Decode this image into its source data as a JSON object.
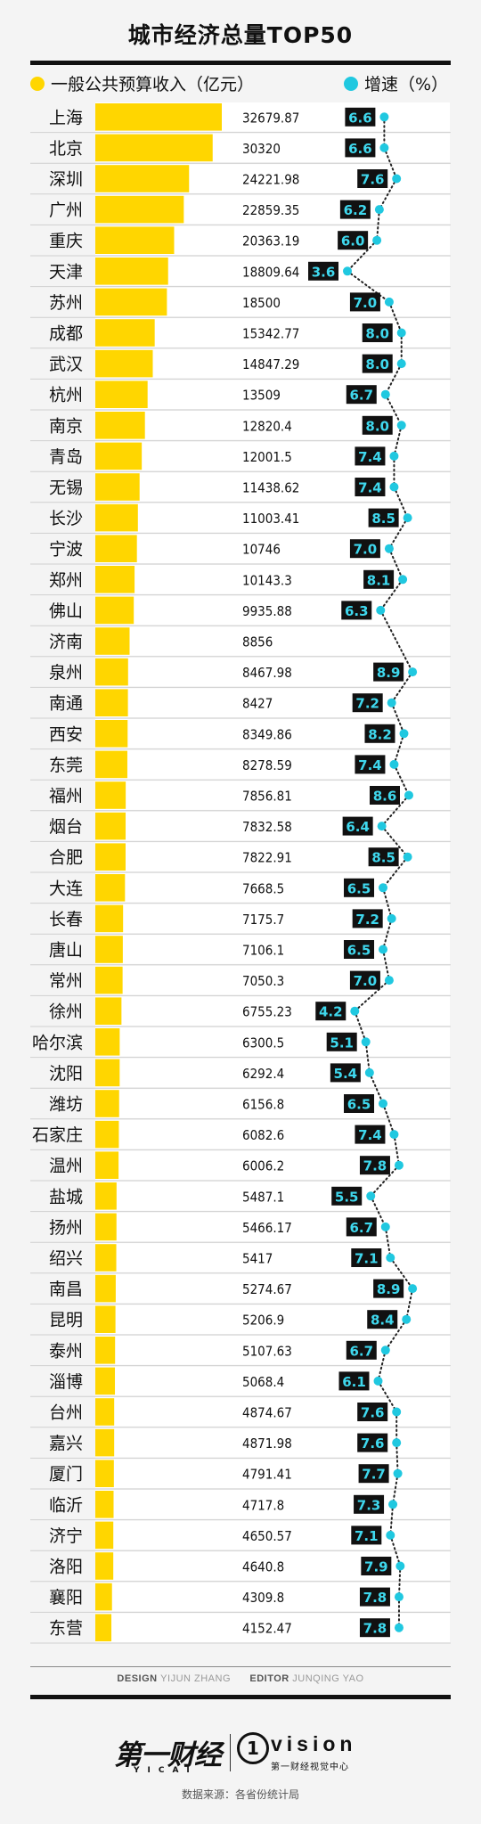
{
  "title": "城市经济总量TOP50",
  "legend": {
    "bar_label": "一般公共预算收入（亿元）",
    "dot_label": "增速（%）"
  },
  "colors": {
    "bar": "#ffd600",
    "dot": "#20c8e0",
    "badge_bg": "#111111",
    "badge_text": "#3fd8ee"
  },
  "chart_data": {
    "type": "bar",
    "title": "城市经济总量TOP50",
    "categories": [
      "上海",
      "北京",
      "深圳",
      "广州",
      "重庆",
      "天津",
      "苏州",
      "成都",
      "武汉",
      "杭州",
      "南京",
      "青岛",
      "无锡",
      "长沙",
      "宁波",
      "郑州",
      "佛山",
      "济南",
      "泉州",
      "南通",
      "西安",
      "东莞",
      "福州",
      "烟台",
      "合肥",
      "大连",
      "长春",
      "唐山",
      "常州",
      "徐州",
      "哈尔滨",
      "沈阳",
      "潍坊",
      "石家庄",
      "温州",
      "盐城",
      "扬州",
      "绍兴",
      "南昌",
      "昆明",
      "泰州",
      "淄博",
      "台州",
      "嘉兴",
      "厦门",
      "临沂",
      "济宁",
      "洛阳",
      "襄阳",
      "东营"
    ],
    "series": [
      {
        "name": "一般公共预算收入（亿元）",
        "type": "bar",
        "values": [
          32679.87,
          30320,
          24221.98,
          22859.35,
          20363.19,
          18809.64,
          18500,
          15342.77,
          14847.29,
          13509,
          12820.4,
          12001.5,
          11438.62,
          11003.41,
          10746,
          10143.3,
          9935.88,
          8856,
          8467.98,
          8427,
          8349.86,
          8278.59,
          7856.81,
          7832.58,
          7822.91,
          7668.5,
          7175.7,
          7106.1,
          7050.3,
          6755.23,
          6300.5,
          6292.4,
          6156.8,
          6082.6,
          6006.2,
          5487.1,
          5466.17,
          5417,
          5274.67,
          5206.9,
          5107.63,
          5068.4,
          4874.67,
          4871.98,
          4791.41,
          4717.8,
          4650.57,
          4640.8,
          4309.8,
          4152.47
        ],
        "labels": [
          "32679.87",
          "30320",
          "24221.98",
          "22859.35",
          "20363.19",
          "18809.64",
          "18500",
          "15342.77",
          "14847.29",
          "13509",
          "12820.4",
          "12001.5",
          "11438.62",
          "11003.41",
          "10746",
          "10143.3",
          "9935.88",
          "8856",
          "8467.98",
          "8427",
          "8349.86",
          "8278.59",
          "7856.81",
          "7832.58",
          "7822.91",
          "7668.5",
          "7175.7",
          "7106.1",
          "7050.3",
          "6755.23",
          "6300.5",
          "6292.4",
          "6156.8",
          "6082.6",
          "6006.2",
          "5487.1",
          "5466.17",
          "5417",
          "5274.67",
          "5206.9",
          "5107.63",
          "5068.4",
          "4874.67",
          "4871.98",
          "4791.41",
          "4717.8",
          "4650.57",
          "4640.8",
          "4309.8",
          "4152.47"
        ]
      },
      {
        "name": "增速（%）",
        "type": "line",
        "values": [
          6.6,
          6.6,
          7.6,
          6.2,
          6.0,
          3.6,
          7.0,
          8.0,
          8.0,
          6.7,
          8.0,
          7.4,
          7.4,
          8.5,
          7.0,
          8.1,
          6.3,
          null,
          8.9,
          7.2,
          8.2,
          7.4,
          8.6,
          6.4,
          8.5,
          6.5,
          7.2,
          6.5,
          7.0,
          4.2,
          5.1,
          5.4,
          6.5,
          7.4,
          7.8,
          5.5,
          6.7,
          7.1,
          8.9,
          8.4,
          6.7,
          6.1,
          7.6,
          7.6,
          7.7,
          7.3,
          7.1,
          7.9,
          7.8,
          7.8
        ],
        "labels": [
          "6.6",
          "6.6",
          "7.6",
          "6.2",
          "6.0",
          "3.6",
          "7.0",
          "8.0",
          "8.0",
          "6.7",
          "8.0",
          "7.4",
          "7.4",
          "8.5",
          "7.0",
          "8.1",
          "6.3",
          "",
          "8.9",
          "7.2",
          "8.2",
          "7.4",
          "8.6",
          "6.4",
          "8.5",
          "6.5",
          "7.2",
          "6.5",
          "7.0",
          "4.2",
          "5.1",
          "5.4",
          "6.5",
          "7.4",
          "7.8",
          "5.5",
          "6.7",
          "7.1",
          "8.9",
          "8.4",
          "6.7",
          "6.1",
          "7.6",
          "7.6",
          "7.7",
          "7.3",
          "7.1",
          "7.9",
          "7.8",
          "7.8"
        ]
      }
    ],
    "xlim_bar": [
      0,
      32679.87
    ]
  },
  "credits": {
    "design_label": "DESIGN",
    "design_name": "YIJUN ZHANG",
    "editor_label": "EDITOR",
    "editor_name": "JUNQING YAO"
  },
  "logos": {
    "yicai": "第一财经",
    "yicai_sub": "YICAI",
    "vision_mark": "1",
    "vision": "vision",
    "vision_sub": "第一财经视觉中心"
  },
  "source": "数据来源：各省份统计局"
}
